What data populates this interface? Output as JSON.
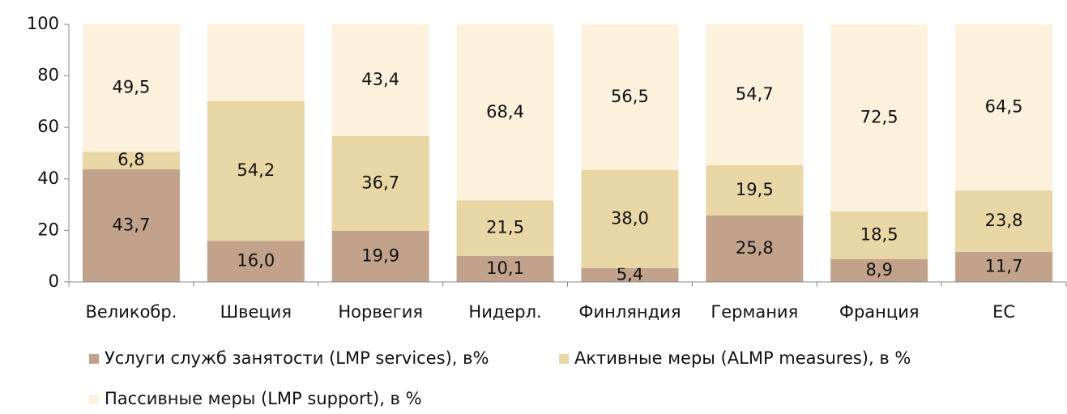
{
  "chart_data": {
    "type": "stacked_bar",
    "categories": [
      "Великобр.",
      "Швеция",
      "Норвегия",
      "Нидерл.",
      "Финляндия",
      "Германия",
      "Франция",
      "ЕС"
    ],
    "series": [
      {
        "name": "Услуги служб занятости (LMP services), в%",
        "color": "#c3a28c",
        "values": [
          43.7,
          16.0,
          19.9,
          10.1,
          5.4,
          25.8,
          8.9,
          11.7
        ],
        "value_labels": [
          "43,7",
          "16,0",
          "19,9",
          "10,1",
          "5,4",
          "25,8",
          "8,9",
          "11,7"
        ]
      },
      {
        "name": "Активные меры (ALMP measures), в %",
        "color": "#e9d6a5",
        "values": [
          6.8,
          54.2,
          36.7,
          21.5,
          38.0,
          19.5,
          18.5,
          23.8
        ],
        "value_labels": [
          "6,8",
          "54,2",
          "36,7",
          "21,5",
          "38,0",
          "19,5",
          "18,5",
          "23,8"
        ]
      },
      {
        "name": "Пассивные меры (LMP support), в %",
        "color": "#fbf1dc",
        "values": [
          49.5,
          29.8,
          43.4,
          68.4,
          56.5,
          54.7,
          72.5,
          64.5
        ],
        "value_labels": [
          "49,5",
          null,
          "43,4",
          "68,4",
          "56,5",
          "54,7",
          "72,5",
          "64,5"
        ]
      }
    ],
    "ylim": [
      0,
      100
    ],
    "yticks": [
      0,
      20,
      40,
      60,
      80,
      100
    ]
  }
}
